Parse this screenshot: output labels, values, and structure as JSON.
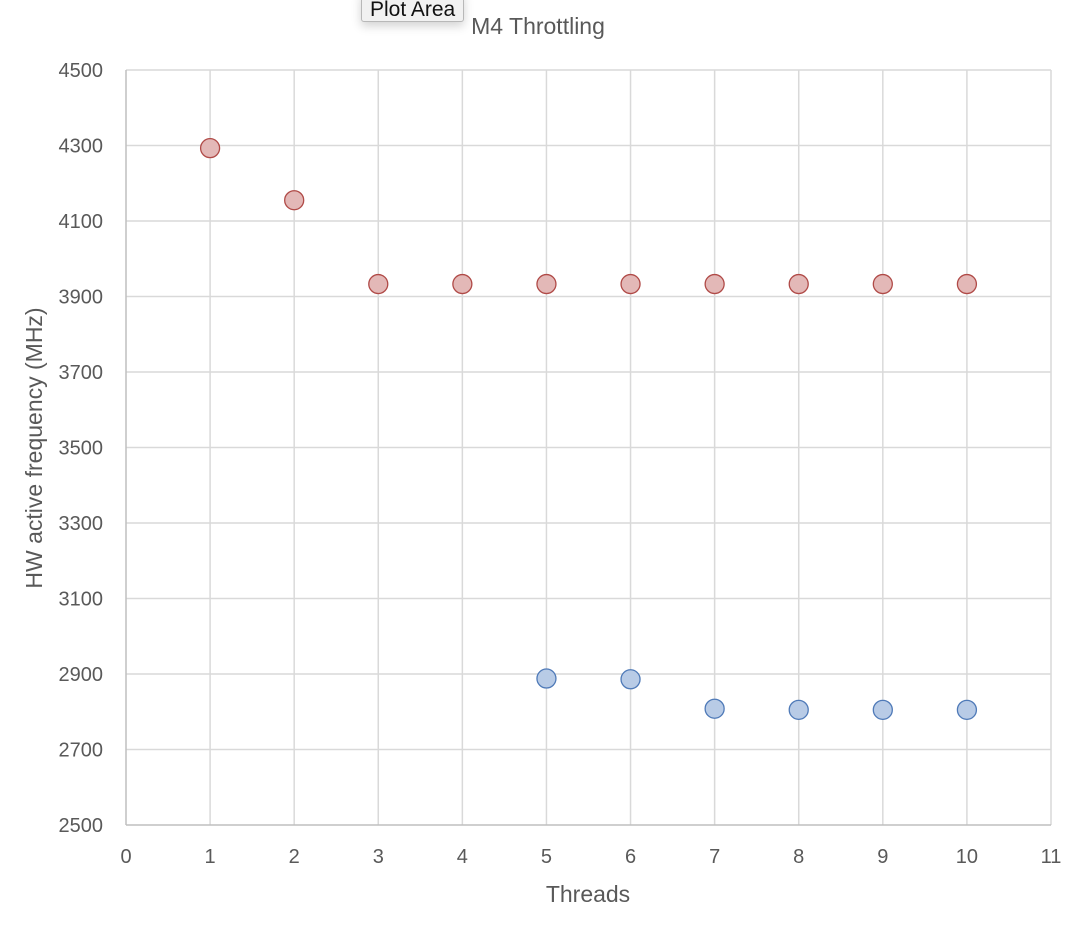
{
  "tooltip": {
    "label": "Plot Area"
  },
  "colors": {
    "series1_fill": "#e3b8b7",
    "series1_stroke": "#b04a47",
    "series2_fill": "#b8cbe6",
    "series2_stroke": "#4f7ab8",
    "grid": "#d9d9d9",
    "text": "#595959"
  },
  "chart_data": {
    "type": "scatter",
    "title": "M4 Throttling",
    "xlabel": "Threads",
    "ylabel": "HW active frequency (MHz)",
    "xlim": [
      0,
      11
    ],
    "ylim": [
      2500,
      4500
    ],
    "xticks": [
      "0",
      "1",
      "2",
      "3",
      "4",
      "5",
      "6",
      "7",
      "8",
      "9",
      "10",
      "11"
    ],
    "yticks": [
      "2500",
      "2700",
      "2900",
      "3100",
      "3300",
      "3500",
      "3700",
      "3900",
      "4100",
      "4300",
      "4500"
    ],
    "grid": true,
    "legend": "none",
    "series": [
      {
        "x": [
          1,
          2,
          3,
          4,
          5,
          6,
          7,
          8,
          9,
          10
        ],
        "y": [
          4293,
          4155,
          3933,
          3933,
          3933,
          3933,
          3933,
          3933,
          3933,
          3933
        ]
      },
      {
        "x": [
          5,
          6,
          7,
          8,
          9,
          10
        ],
        "y": [
          2888,
          2886,
          2808,
          2805,
          2805,
          2805
        ]
      }
    ]
  }
}
